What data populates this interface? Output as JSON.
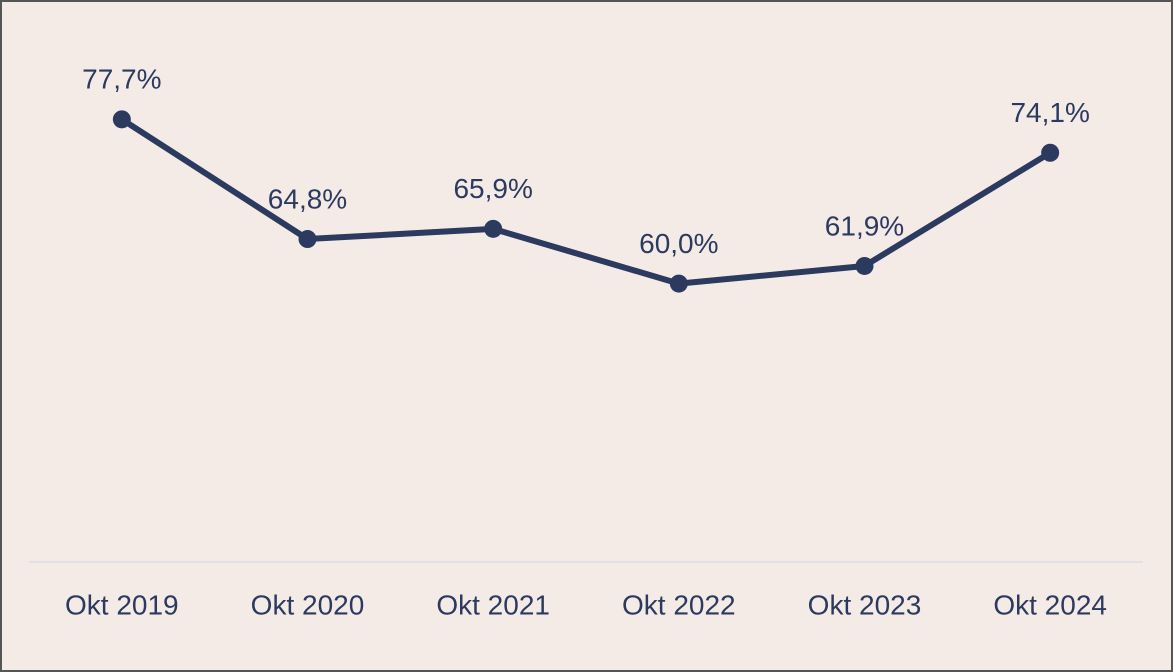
{
  "chart_data": {
    "type": "line",
    "categories": [
      "Okt 2019",
      "Okt 2020",
      "Okt 2021",
      "Okt 2022",
      "Okt 2023",
      "Okt 2024"
    ],
    "values": [
      77.7,
      64.8,
      65.9,
      60.0,
      61.9,
      74.1
    ],
    "value_labels": [
      "77,7%",
      "64,8%",
      "65,9%",
      "60,0%",
      "61,9%",
      "74,1%"
    ],
    "color": "#2b3a5e",
    "ylim": [
      30,
      80
    ]
  }
}
